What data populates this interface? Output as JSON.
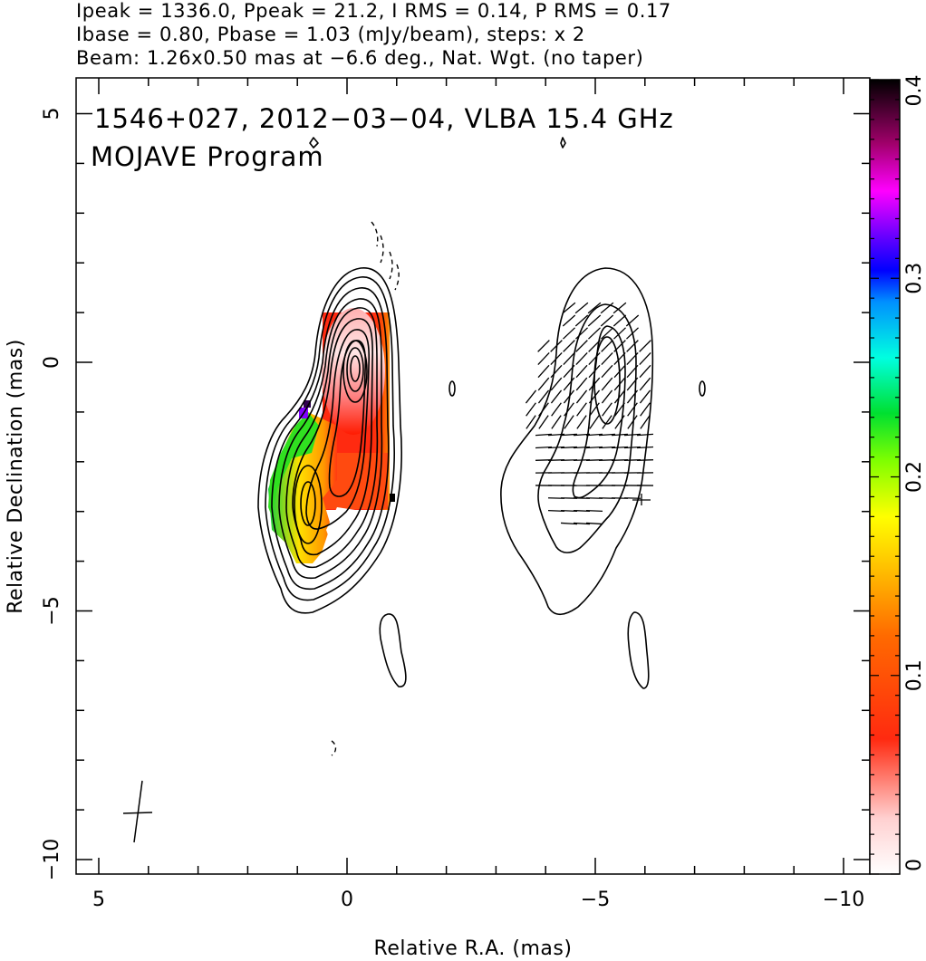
{
  "header": {
    "line1": "Ipeak = 1336.0, Ppeak = 21.2, I RMS = 0.14, P RMS = 0.17",
    "line2": "Ibase = 0.80, Pbase = 1.03 (mJy/beam), steps: x 2",
    "line3": "Beam: 1.26x0.50 mas at −6.6 deg., Nat. Wgt. (no taper)"
  },
  "chart_data": {
    "type": "heatmap",
    "annotation_line1": "1546+027, 2012−03−04, VLBA 15.4 GHz",
    "annotation_line2": "MOJAVE Program",
    "xlabel": "Relative R.A. (mas)",
    "ylabel": "Relative Declination (mas)",
    "xlim": [
      5.5,
      -10.5
    ],
    "ylim": [
      -10.3,
      5.8
    ],
    "x_ticks": [
      5,
      0,
      -5,
      -10
    ],
    "x_tick_labels": [
      "5",
      "0",
      "−5",
      "−10"
    ],
    "y_ticks": [
      5,
      0,
      -5,
      -10
    ],
    "y_tick_labels": [
      "5",
      "0",
      "−5",
      "−10"
    ],
    "colorbar": {
      "min": 0,
      "max": 0.4,
      "ticks": [
        0,
        0.1,
        0.2,
        0.3,
        0.4
      ],
      "tick_labels": [
        "0",
        "0.1",
        "0.2",
        "0.3",
        "0.4"
      ]
    },
    "beam": {
      "major_mas": 1.26,
      "minor_mas": 0.5,
      "pa_deg": -6.6,
      "center": [
        4.2,
        -9.1
      ]
    },
    "panels": [
      {
        "name": "total-intensity-with-fractional-polarization",
        "x_offset": 0,
        "components": [
          {
            "x": 0.0,
            "y": 0.0,
            "peak_mJy": 1336.0
          },
          {
            "x": 0.85,
            "y": -2.8
          }
        ]
      },
      {
        "name": "polarized-intensity-with-evpa",
        "x_offset": -5.0
      }
    ],
    "contour_base_mJy": 0.8,
    "contour_step": 2,
    "grid": false
  }
}
